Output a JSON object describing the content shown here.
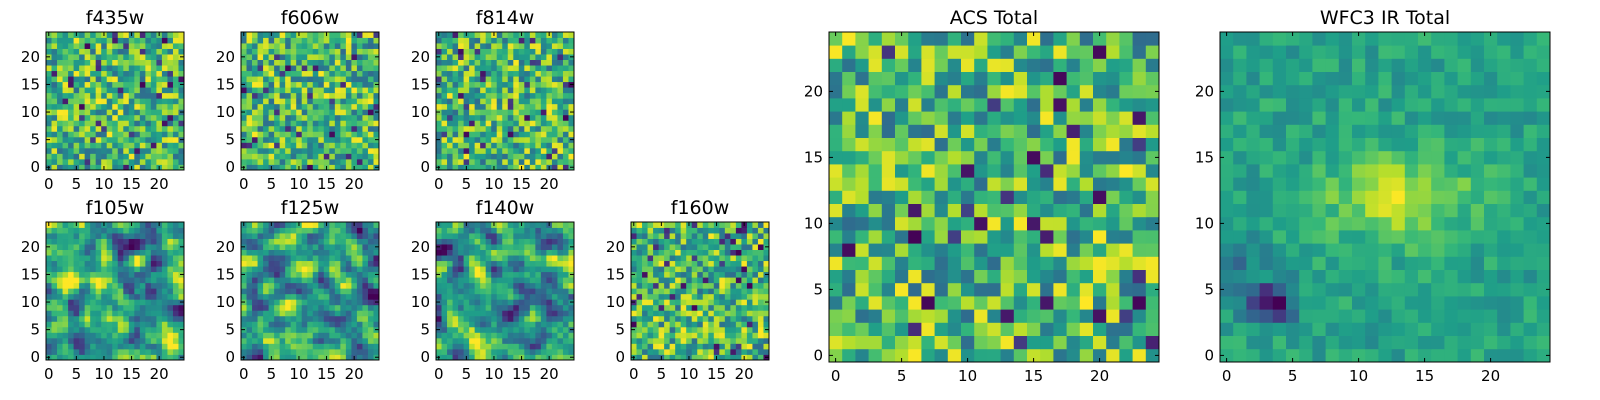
{
  "chart_data": [
    {
      "type": "heatmap",
      "title": "f435w",
      "xticks": [
        "0",
        "5",
        "10",
        "15",
        "20"
      ],
      "yticks": [
        "0",
        "5",
        "10",
        "15",
        "20"
      ],
      "xlim": [
        0,
        25
      ],
      "ylim": [
        0,
        25
      ],
      "grid": false,
      "colormap": "viridis",
      "z_estimated": "randomized"
    },
    {
      "type": "heatmap",
      "title": "f606w",
      "xticks": [
        "0",
        "5",
        "10",
        "15",
        "20"
      ],
      "yticks": [
        "0",
        "5",
        "10",
        "15",
        "20"
      ],
      "xlim": [
        0,
        25
      ],
      "ylim": [
        0,
        25
      ],
      "grid": false,
      "colormap": "viridis",
      "z_estimated": "randomized"
    },
    {
      "type": "heatmap",
      "title": "f814w",
      "xticks": [
        "0",
        "5",
        "10",
        "15",
        "20"
      ],
      "yticks": [
        "0",
        "5",
        "10",
        "15",
        "20"
      ],
      "xlim": [
        0,
        25
      ],
      "ylim": [
        0,
        25
      ],
      "grid": false,
      "colormap": "viridis",
      "z_estimated": "randomized"
    },
    {
      "type": "heatmap",
      "title": "f105w",
      "xticks": [
        "0",
        "5",
        "10",
        "15",
        "20"
      ],
      "yticks": [
        "0",
        "5",
        "10",
        "15",
        "20"
      ],
      "xlim": [
        0,
        25
      ],
      "ylim": [
        0,
        25
      ],
      "grid": false,
      "colormap": "viridis",
      "z_estimated": "randomized"
    },
    {
      "type": "heatmap",
      "title": "f125w",
      "xticks": [
        "0",
        "5",
        "10",
        "15",
        "20"
      ],
      "yticks": [
        "0",
        "5",
        "10",
        "15",
        "20"
      ],
      "xlim": [
        0,
        25
      ],
      "ylim": [
        0,
        25
      ],
      "grid": false,
      "colormap": "viridis",
      "z_estimated": "randomized"
    },
    {
      "type": "heatmap",
      "title": "f140w",
      "xticks": [
        "0",
        "5",
        "10",
        "15",
        "20"
      ],
      "yticks": [
        "0",
        "5",
        "10",
        "15",
        "20"
      ],
      "xlim": [
        0,
        25
      ],
      "ylim": [
        0,
        25
      ],
      "grid": false,
      "colormap": "viridis",
      "z_estimated": "randomized"
    },
    {
      "type": "heatmap",
      "title": "f160w",
      "xticks": [
        "0",
        "5",
        "10",
        "15",
        "20"
      ],
      "yticks": [
        "0",
        "5",
        "10",
        "15",
        "20"
      ],
      "xlim": [
        0,
        25
      ],
      "ylim": [
        0,
        25
      ],
      "grid": false,
      "colormap": "viridis",
      "z_estimated": "randomized"
    },
    {
      "type": "heatmap",
      "title": "ACS Total",
      "xticks": [
        "0",
        "5",
        "10",
        "15",
        "20"
      ],
      "yticks": [
        "0",
        "5",
        "10",
        "15",
        "20"
      ],
      "xlim": [
        0,
        25
      ],
      "ylim": [
        0,
        25
      ],
      "grid": false,
      "colormap": "viridis",
      "z_estimated": "randomized"
    },
    {
      "type": "heatmap",
      "title": "WFC3 IR Total",
      "xticks": [
        "0",
        "5",
        "10",
        "15",
        "20"
      ],
      "yticks": [
        "0",
        "5",
        "10",
        "15",
        "20"
      ],
      "xlim": [
        0,
        25
      ],
      "ylim": [
        0,
        25
      ],
      "grid": false,
      "colormap": "viridis",
      "z_estimated": "smooth-blob",
      "features": [
        "bright yellow region near x=10-16, y=10-14",
        "dark purple region near x=2-5, y=3-5"
      ]
    }
  ]
}
